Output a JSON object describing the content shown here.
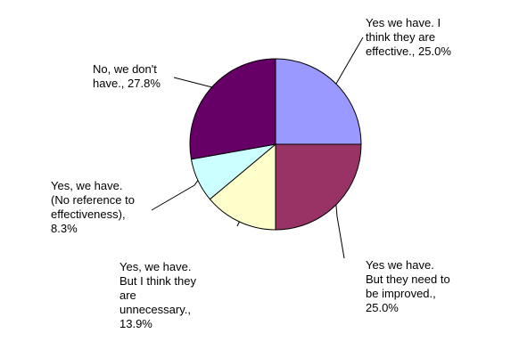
{
  "chart_data": {
    "type": "pie",
    "title": "",
    "start_angle_deg": 90,
    "direction": "clockwise",
    "slices": [
      {
        "label": "Yes we have. I\nthink they are\neffective., 25.0%",
        "value": 25.0,
        "color": "#9999ff"
      },
      {
        "label": "Yes we have.\nBut they need to\nbe improved.,\n25.0%",
        "value": 25.0,
        "color": "#993366"
      },
      {
        "label": "Yes, we have.\nBut I think they\nare\nunnecessary.,\n13.9%",
        "value": 13.9,
        "color": "#ffffcc"
      },
      {
        "label": "Yes, we have.\n(No reference to\neffectiveness),\n8.3%",
        "value": 8.3,
        "color": "#ccffff"
      },
      {
        "label": "No, we don't\nhave., 27.8%",
        "value": 27.8,
        "color": "#660066"
      }
    ]
  }
}
